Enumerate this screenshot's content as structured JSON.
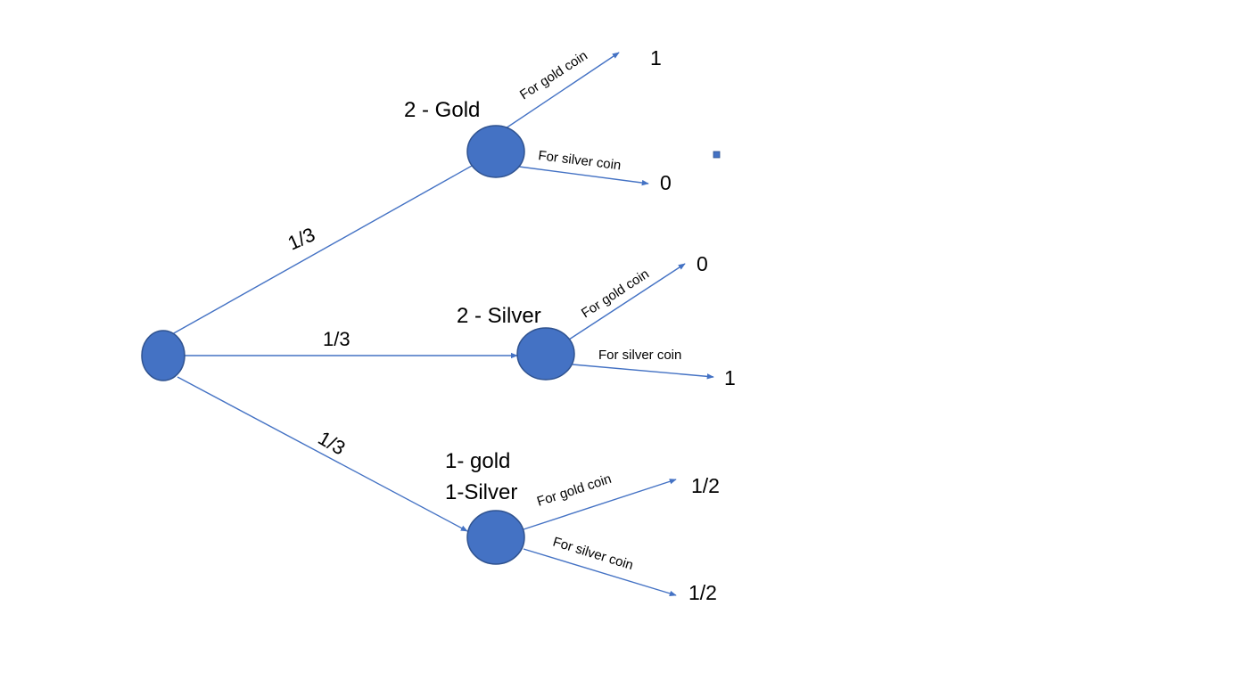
{
  "colors": {
    "node_fill": "#4472c4",
    "node_stroke": "#2f528f",
    "edge": "#4472c4",
    "text": "#000000"
  },
  "root": {
    "branches": [
      {
        "probability": "1/3",
        "node_label": [
          "2 - Gold"
        ],
        "outcomes": [
          {
            "edge_label": "For gold coin",
            "value": "1"
          },
          {
            "edge_label": "For silver coin",
            "value": "0"
          }
        ]
      },
      {
        "probability": "1/3",
        "node_label": [
          "2 - Silver"
        ],
        "outcomes": [
          {
            "edge_label": "For gold coin",
            "value": "0"
          },
          {
            "edge_label": "For silver coin",
            "value": "1"
          }
        ]
      },
      {
        "probability": "1/3",
        "node_label": [
          "1- gold",
          "1-Silver"
        ],
        "outcomes": [
          {
            "edge_label": "For gold coin",
            "value": "1/2"
          },
          {
            "edge_label": "For silver coin",
            "value": "1/2"
          }
        ]
      }
    ]
  }
}
